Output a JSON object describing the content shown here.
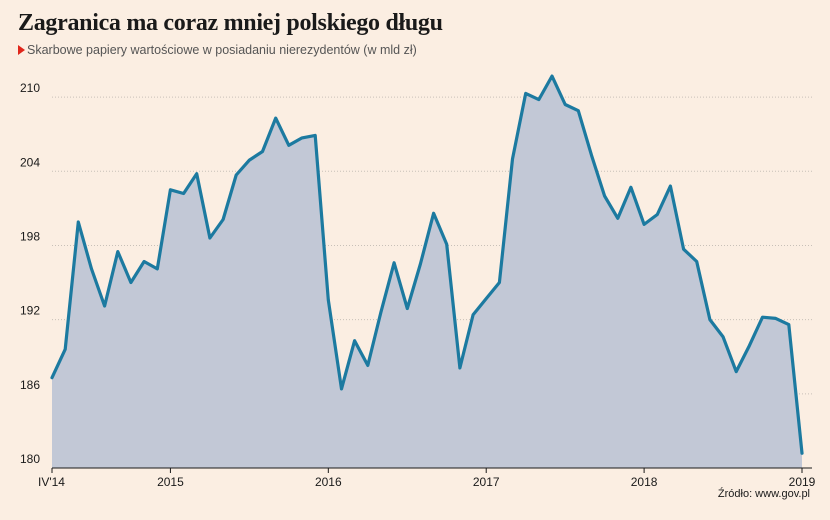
{
  "header": {
    "title": "Zagranica ma coraz mniej polskiego długu",
    "subtitle": "Skarbowe papiery wartościowe w posiadaniu nierezydentów (w mld zł)"
  },
  "footer": {
    "source": "Źródło: www.gov.pl"
  },
  "colors": {
    "line": "#1c7aa0",
    "area": "#c2c8d6",
    "background": "#fbeee2",
    "accent": "#e0261b",
    "grid": "#c8c0b8"
  },
  "chart_data": {
    "type": "area",
    "title": "Zagranica ma coraz mniej polskiego długu",
    "subtitle": "Skarbowe papiery wartościowe w posiadaniu nierezydentów (w mld zł)",
    "xlabel": "",
    "ylabel": "",
    "ylim": [
      180,
      213
    ],
    "yticks": [
      180,
      186,
      192,
      198,
      204,
      210
    ],
    "xticks": [
      {
        "label": "IV'14",
        "index": 0
      },
      {
        "label": "2015",
        "index": 9
      },
      {
        "label": "2016",
        "index": 21
      },
      {
        "label": "2017",
        "index": 33
      },
      {
        "label": "2018",
        "index": 45
      },
      {
        "label": "2019",
        "index": 57
      }
    ],
    "grid": "horizontal",
    "legend": "none",
    "series": [
      {
        "values": [
          187.3,
          189.6,
          199.9,
          196.1,
          193.1,
          197.5,
          195.0,
          196.7,
          196.1,
          202.5,
          202.2,
          203.8,
          198.6,
          200.1,
          203.7,
          204.9,
          205.6,
          208.3,
          206.1,
          206.7,
          206.9,
          193.6,
          186.4,
          190.3,
          188.3,
          192.6,
          196.6,
          192.9,
          196.5,
          200.6,
          198.1,
          188.1,
          192.4,
          193.7,
          195.0,
          205.0,
          210.3,
          209.8,
          211.7,
          209.4,
          208.9,
          205.3,
          202.0,
          200.2,
          202.7,
          199.7,
          200.5,
          202.8,
          197.7,
          196.7,
          192.0,
          190.6,
          187.8,
          189.9,
          192.2,
          192.1,
          191.6,
          181.2
        ]
      }
    ]
  }
}
